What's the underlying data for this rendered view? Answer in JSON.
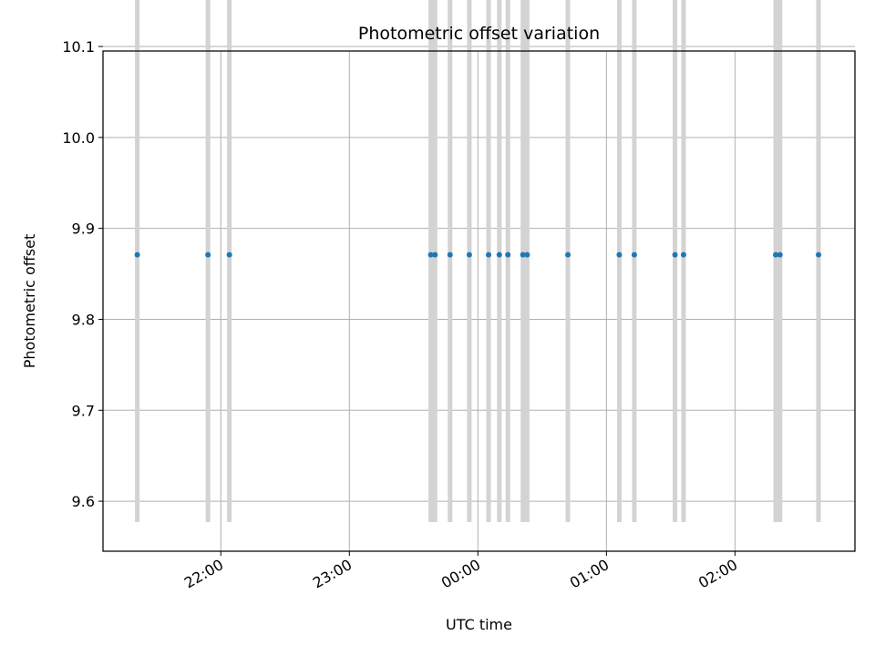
{
  "chart_data": {
    "type": "scatter",
    "title": "Photometric offset variation",
    "xlabel": "UTC time",
    "ylabel": "Photometric offset",
    "x_axis_type": "time",
    "xlim": [
      "21:05",
      "02:56"
    ],
    "ylim": [
      9.545,
      10.095
    ],
    "x_ticks": [
      "22:00",
      "23:00",
      "00:00",
      "01:00",
      "02:00"
    ],
    "y_ticks": [
      9.6,
      9.7,
      9.8,
      9.9,
      10.0,
      10.1
    ],
    "y_tick_labels": [
      "9.6",
      "9.7",
      "9.8",
      "9.9",
      "10.0",
      "10.1"
    ],
    "grid": true,
    "error_bar_range": [
      9.577,
      10.17
    ],
    "points": [
      {
        "x": "21:21",
        "y": 9.871
      },
      {
        "x": "21:54",
        "y": 9.871
      },
      {
        "x": "22:04",
        "y": 9.871
      },
      {
        "x": "23:38",
        "y": 9.871
      },
      {
        "x": "23:40",
        "y": 9.871
      },
      {
        "x": "23:47",
        "y": 9.871
      },
      {
        "x": "23:56",
        "y": 9.871
      },
      {
        "x": "00:05",
        "y": 9.871
      },
      {
        "x": "00:10",
        "y": 9.871
      },
      {
        "x": "00:14",
        "y": 9.871
      },
      {
        "x": "00:21",
        "y": 9.871
      },
      {
        "x": "00:23",
        "y": 9.871
      },
      {
        "x": "00:42",
        "y": 9.871
      },
      {
        "x": "01:06",
        "y": 9.871
      },
      {
        "x": "01:13",
        "y": 9.871
      },
      {
        "x": "01:32",
        "y": 9.871
      },
      {
        "x": "01:36",
        "y": 9.871
      },
      {
        "x": "02:19",
        "y": 9.871
      },
      {
        "x": "02:21",
        "y": 9.871
      },
      {
        "x": "02:39",
        "y": 9.871
      }
    ],
    "colors": {
      "point": "#1f77b4",
      "error_bar": "#d3d3d3",
      "grid": "#b0b0b0",
      "axes": "#000000"
    }
  }
}
